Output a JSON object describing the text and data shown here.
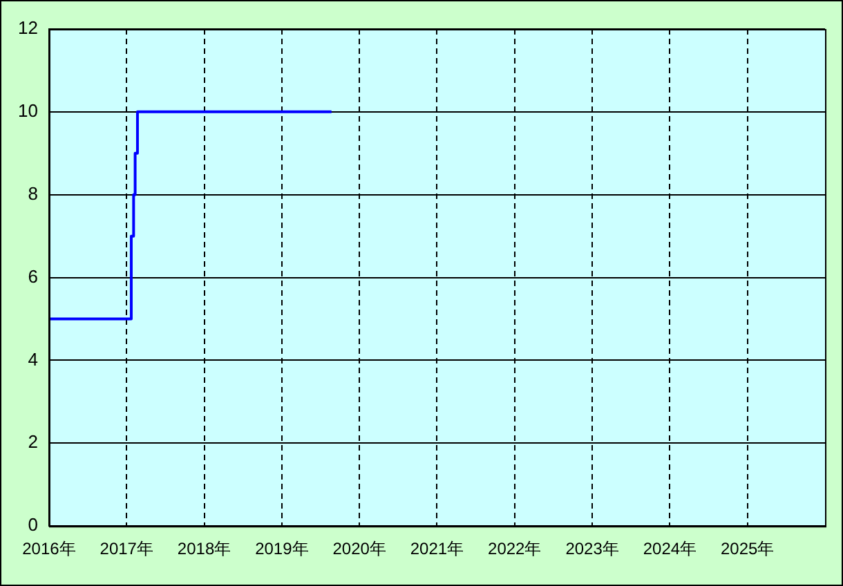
{
  "chart_data": {
    "type": "step",
    "x": [
      2016,
      2017.06,
      2017.09,
      2017.11,
      2017.14,
      2019.64
    ],
    "series": [
      {
        "color": "#0000ff",
        "values": [
          5,
          7,
          8,
          9,
          10,
          10
        ]
      }
    ],
    "xlim": [
      2016,
      2026
    ],
    "xticks": [
      {
        "value": 2016,
        "label": "2016年"
      },
      {
        "value": 2017,
        "label": "2017年"
      },
      {
        "value": 2018,
        "label": "2018年"
      },
      {
        "value": 2019,
        "label": "2019年"
      },
      {
        "value": 2020,
        "label": "2020年"
      },
      {
        "value": 2021,
        "label": "2021年"
      },
      {
        "value": 2022,
        "label": "2022年"
      },
      {
        "value": 2023,
        "label": "2023年"
      },
      {
        "value": 2024,
        "label": "2024年"
      },
      {
        "value": 2025,
        "label": "2025年"
      }
    ],
    "ylim": [
      0,
      12
    ],
    "yticks": [
      0,
      2,
      4,
      6,
      8,
      10,
      12
    ],
    "grid": true,
    "legend": false
  }
}
